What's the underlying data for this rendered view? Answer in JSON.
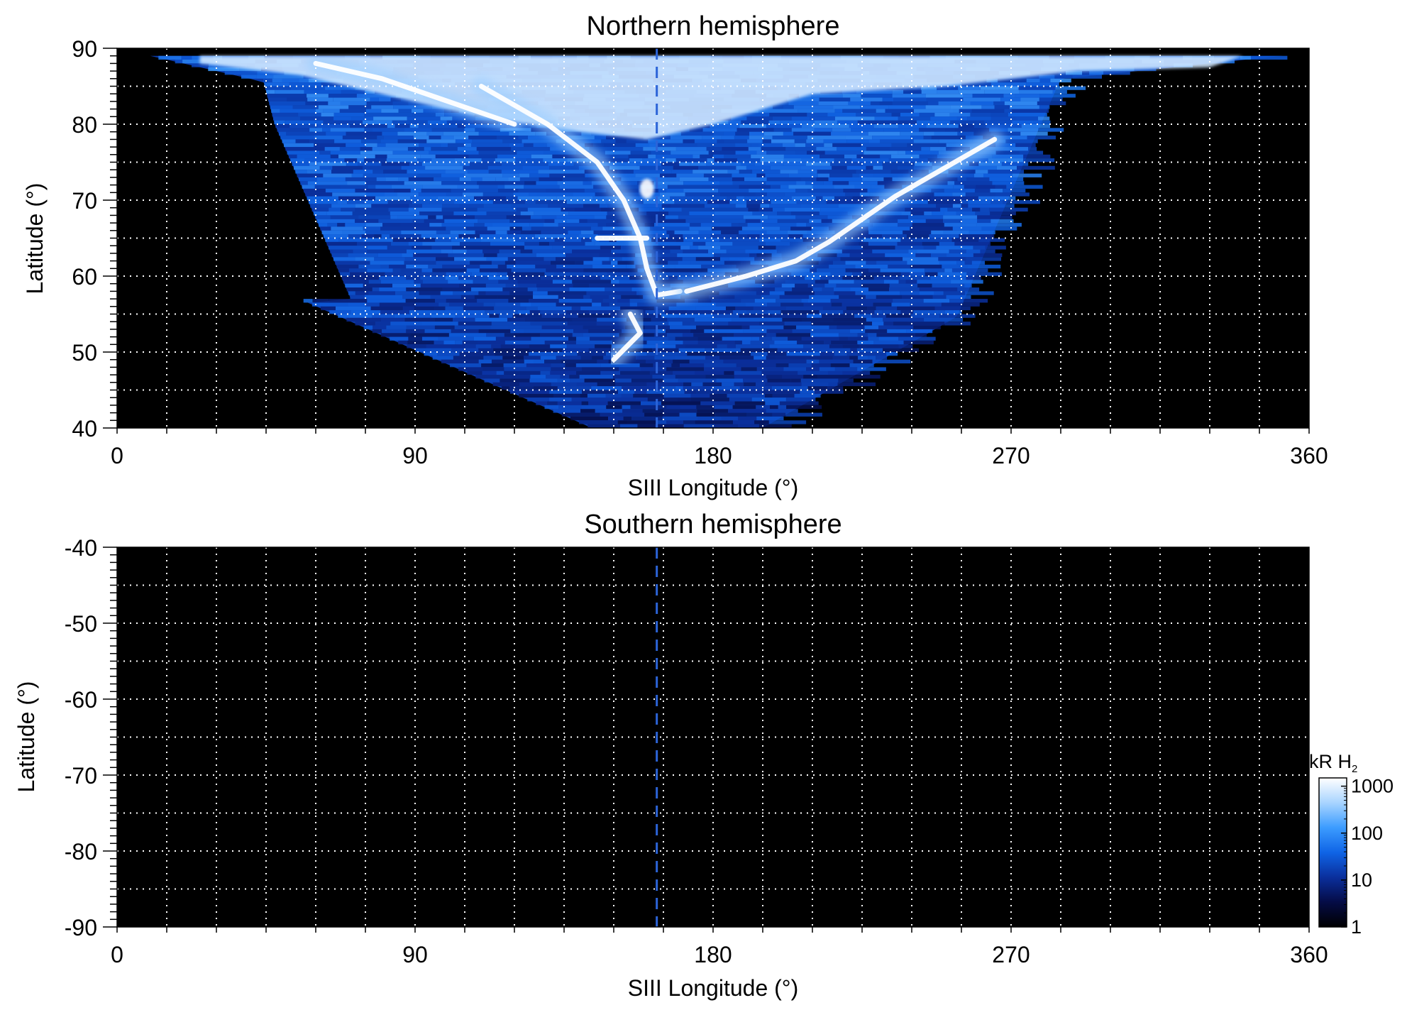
{
  "chart_data": [
    {
      "type": "heatmap",
      "title": "Northern hemisphere",
      "xlabel": "SIII Longitude (°)",
      "ylabel": "Latitude (°)",
      "xlim": [
        0,
        360
      ],
      "ylim": [
        40,
        90
      ],
      "xticks": [
        "0",
        "90",
        "180",
        "270",
        "360"
      ],
      "yticks": [
        "40",
        "50",
        "60",
        "70",
        "80",
        "90"
      ],
      "grid": true,
      "grid_style": "dotted white every 15° longitude and 5° latitude",
      "background": "#000000",
      "dashed_meridian_longitude": 163,
      "emission_region": {
        "longitude_extent": [
          40,
          352
        ],
        "polar_edge_latitude": 89,
        "lowest_latitude_reached": 40,
        "lowest_latitude_longitude_range": [
          137,
          195
        ]
      },
      "features": [
        {
          "name": "main auroral oval (dusk/left branch)",
          "points": [
            [
              110,
              85
            ],
            [
              130,
              80
            ],
            [
              145,
              75
            ],
            [
              153,
              70
            ],
            [
              158,
              65
            ],
            [
              160,
              61
            ],
            [
              163,
              57.5
            ],
            [
              170,
              58
            ]
          ]
        },
        {
          "name": "main auroral oval (dawn/right branch)",
          "points": [
            [
              172,
              58
            ],
            [
              190,
              60
            ],
            [
              205,
              62
            ],
            [
              215,
              64.5
            ],
            [
              225,
              67.5
            ],
            [
              235,
              70.5
            ],
            [
              245,
              73
            ],
            [
              255,
              75.5
            ],
            [
              265,
              78
            ]
          ]
        },
        {
          "name": "bright polar cap region",
          "points": [
            [
              60,
              88
            ],
            [
              80,
              86
            ],
            [
              100,
              83
            ],
            [
              120,
              80
            ]
          ]
        },
        {
          "name": "spot near 70°",
          "points": [
            [
              160,
              71.5
            ]
          ]
        },
        {
          "name": "spot near 65°",
          "points": [
            [
              145,
              65
            ],
            [
              160,
              65
            ]
          ]
        },
        {
          "name": "low-latitude bright patch",
          "points": [
            [
              155,
              55
            ],
            [
              158,
              52.5
            ],
            [
              150,
              49
            ]
          ]
        }
      ]
    },
    {
      "type": "heatmap",
      "title": "Southern hemisphere",
      "xlabel": "SIII Longitude (°)",
      "ylabel": "Latitude (°)",
      "xlim": [
        0,
        360
      ],
      "ylim": [
        -90,
        -40
      ],
      "xticks": [
        "0",
        "90",
        "180",
        "270",
        "360"
      ],
      "yticks": [
        "-40",
        "-50",
        "-60",
        "-70",
        "-80",
        "-90"
      ],
      "grid": true,
      "background": "#000000",
      "dashed_meridian_longitude": 163,
      "emission_region": null
    }
  ],
  "colorbar": {
    "title_main": "kR H",
    "title_sub": "2",
    "scale": "log",
    "range": [
      1,
      1500
    ],
    "ticks": [
      "1",
      "10",
      "100",
      "1000"
    ],
    "tick_values": [
      1,
      10,
      100,
      1000
    ],
    "colors": [
      "#000000",
      "#050c46",
      "#0a2f9c",
      "#0f64e6",
      "#3c9cff",
      "#a8d4ff",
      "#ffffff"
    ]
  },
  "colors": {
    "bright": "#ffffff",
    "medium": "#3c9cff",
    "dim": "#0a2f9c",
    "meridian": "#2c64d8"
  }
}
